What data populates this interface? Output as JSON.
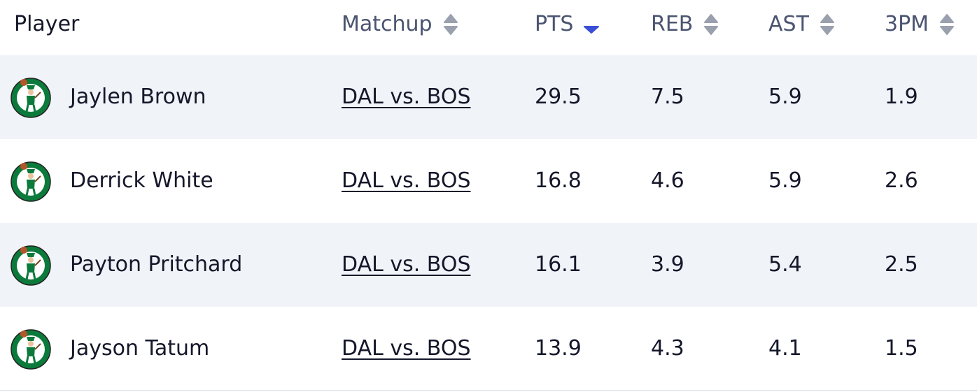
{
  "table": {
    "header": [
      "Player",
      "Matchup",
      "PTS",
      "REB",
      "AST",
      "3PM"
    ],
    "rows": [
      [
        "Jaylen Brown",
        "DAL vs. BOS",
        "29.5",
        "7.5",
        "5.9",
        "1.9"
      ],
      [
        "Derrick White",
        "DAL vs. BOS",
        "16.8",
        "4.6",
        "5.9",
        "2.6"
      ],
      [
        "Payton Pritchard",
        "DAL vs. BOS",
        "16.1",
        "3.9",
        "5.4",
        "2.5"
      ],
      [
        "Jayson Tatum",
        "DAL vs. BOS",
        "13.9",
        "4.3",
        "4.1",
        "1.5"
      ]
    ]
  }
}
